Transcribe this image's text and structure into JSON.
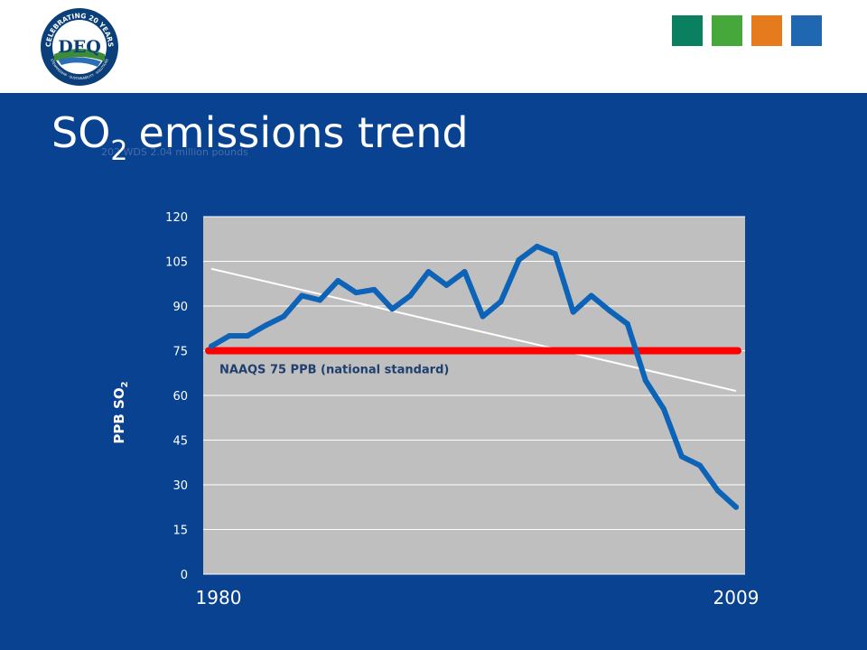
{
  "title": {
    "main": "SO",
    "sub": "2",
    "rest": "emissions trend"
  },
  "ghost_text": "202 WDS 2.04 million pounds",
  "logo": {
    "top_text": "CELEBRATING 20 YEARS",
    "center": "DEQ",
    "bottom_text": "STEWARDSHIP · SUSTAINABILITY · SOLUTIONS",
    "colors": {
      "ring": "#0a3f7a",
      "center_bg": "#ffffff",
      "green": "#3d8a3a"
    }
  },
  "color_squares": [
    "#0b8060",
    "#46a73b",
    "#e57b1c",
    "#1f67b1"
  ],
  "colors": {
    "background": "#084291",
    "plot_bg": "#bfbfbf",
    "line": "#0d63b8",
    "standard": "#ff0000",
    "trend": "#ffffff",
    "tick_label": "#ffffff"
  },
  "chart_data": {
    "type": "line",
    "xlabel": "",
    "ylabel": {
      "main": "PPB SO",
      "sub": "2"
    },
    "ylim": [
      0,
      120
    ],
    "yticks": [
      "0",
      "15",
      "30",
      "45",
      "60",
      "75",
      "90",
      "105",
      "120"
    ],
    "x_tick_labels": [
      {
        "label": "1980",
        "year": 1980
      },
      {
        "label": "2009",
        "year": 2009
      }
    ],
    "grid": true,
    "series": [
      {
        "name": "",
        "x": [
          1980,
          1981,
          1982,
          1983,
          1984,
          1985,
          1986,
          1987,
          1988,
          1989,
          1990,
          1991,
          1992,
          1993,
          1994,
          1995,
          1996,
          1997,
          1998,
          1999,
          2000,
          2001,
          2002,
          2003,
          2004,
          2005,
          2006,
          2007,
          2008,
          2009
        ],
        "values": [
          76.5,
          80,
          80,
          83.5,
          86.5,
          93.5,
          92,
          98.5,
          94.5,
          95.5,
          89,
          93.5,
          101.5,
          97,
          101.5,
          86.5,
          91.5,
          105.5,
          110,
          107.5,
          88,
          93.5,
          88.5,
          84,
          65,
          55.5,
          39.5,
          36.5,
          28,
          22.5
        ]
      }
    ],
    "standard": {
      "label": "NAAQS 75 PPB (national standard)",
      "value": 75
    },
    "trendline": {
      "x": [
        1980,
        2009
      ],
      "values": [
        102.5,
        61.5
      ]
    }
  }
}
